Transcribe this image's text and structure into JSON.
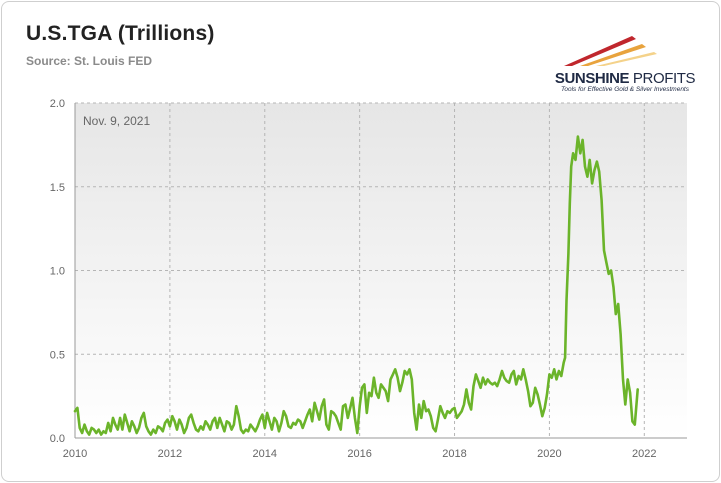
{
  "header": {
    "title": "U.S.TGA (Trillions)",
    "source": "Source: St. Louis FED"
  },
  "logo": {
    "name_part1": "SUNSHINE",
    "name_part2": " PROFITS",
    "tagline": "Tools for Effective Gold & Silver Investments",
    "colors": [
      "#c0272d",
      "#e8a33d",
      "#f4d28a"
    ]
  },
  "chart_data": {
    "type": "line",
    "title": "U.S.TGA (Trillions)",
    "annotation": "Nov. 9, 2021",
    "xlabel": "",
    "ylabel": "",
    "xlim": [
      2010,
      2022.9
    ],
    "ylim": [
      0,
      2.0
    ],
    "x_ticks": [
      2010,
      2012,
      2014,
      2016,
      2018,
      2020,
      2022
    ],
    "x_tick_labels": [
      "2010",
      "2012",
      "2014",
      "2016",
      "2018",
      "2020",
      "2022"
    ],
    "y_ticks": [
      0,
      0.5,
      1.0,
      1.5,
      2.0
    ],
    "y_tick_labels": [
      "0.0",
      "0.5",
      "1.0",
      "1.5",
      "2.0"
    ],
    "grid": true,
    "line_color": "#6bb42a",
    "series": [
      {
        "x": [
          2010.0,
          2010.05,
          2010.1,
          2010.15,
          2010.2,
          2010.25,
          2010.3,
          2010.35,
          2010.4,
          2010.45,
          2010.5,
          2010.55,
          2010.6,
          2010.65,
          2010.7,
          2010.75,
          2010.8,
          2010.85,
          2010.9,
          2010.95,
          2011.0,
          2011.05,
          2011.1,
          2011.15,
          2011.2,
          2011.25,
          2011.3,
          2011.35,
          2011.4,
          2011.45,
          2011.5,
          2011.55,
          2011.6,
          2011.65,
          2011.7,
          2011.75,
          2011.8,
          2011.85,
          2011.9,
          2011.95,
          2012.0,
          2012.05,
          2012.1,
          2012.15,
          2012.2,
          2012.25,
          2012.3,
          2012.35,
          2012.4,
          2012.45,
          2012.5,
          2012.55,
          2012.6,
          2012.65,
          2012.7,
          2012.75,
          2012.8,
          2012.85,
          2012.9,
          2012.95,
          2013.0,
          2013.05,
          2013.1,
          2013.15,
          2013.2,
          2013.25,
          2013.3,
          2013.35,
          2013.4,
          2013.45,
          2013.5,
          2013.55,
          2013.6,
          2013.65,
          2013.7,
          2013.75,
          2013.8,
          2013.85,
          2013.9,
          2013.95,
          2014.0,
          2014.05,
          2014.1,
          2014.15,
          2014.2,
          2014.25,
          2014.3,
          2014.35,
          2014.4,
          2014.45,
          2014.5,
          2014.55,
          2014.6,
          2014.65,
          2014.7,
          2014.75,
          2014.8,
          2014.85,
          2014.9,
          2014.95,
          2015.0,
          2015.05,
          2015.1,
          2015.15,
          2015.2,
          2015.25,
          2015.3,
          2015.35,
          2015.4,
          2015.45,
          2015.5,
          2015.55,
          2015.6,
          2015.65,
          2015.7,
          2015.75,
          2015.8,
          2015.85,
          2015.9,
          2015.95,
          2016.0,
          2016.05,
          2016.1,
          2016.15,
          2016.2,
          2016.25,
          2016.3,
          2016.35,
          2016.4,
          2016.45,
          2016.5,
          2016.55,
          2016.6,
          2016.65,
          2016.7,
          2016.75,
          2016.8,
          2016.85,
          2016.9,
          2016.95,
          2017.0,
          2017.05,
          2017.1,
          2017.15,
          2017.2,
          2017.25,
          2017.3,
          2017.35,
          2017.4,
          2017.45,
          2017.5,
          2017.55,
          2017.6,
          2017.65,
          2017.7,
          2017.75,
          2017.8,
          2017.85,
          2017.9,
          2017.95,
          2018.0,
          2018.05,
          2018.1,
          2018.15,
          2018.2,
          2018.25,
          2018.3,
          2018.35,
          2018.4,
          2018.45,
          2018.5,
          2018.55,
          2018.6,
          2018.65,
          2018.7,
          2018.75,
          2018.8,
          2018.85,
          2018.9,
          2018.95,
          2019.0,
          2019.05,
          2019.1,
          2019.15,
          2019.2,
          2019.25,
          2019.3,
          2019.35,
          2019.4,
          2019.45,
          2019.5,
          2019.55,
          2019.6,
          2019.65,
          2019.7,
          2019.75,
          2019.8,
          2019.85,
          2019.9,
          2019.95,
          2020.0,
          2020.05,
          2020.1,
          2020.15,
          2020.2,
          2020.25,
          2020.3,
          2020.33,
          2020.36,
          2020.4,
          2020.43,
          2020.46,
          2020.5,
          2020.55,
          2020.6,
          2020.65,
          2020.7,
          2020.75,
          2020.8,
          2020.85,
          2020.9,
          2020.95,
          2021.0,
          2021.05,
          2021.1,
          2021.15,
          2021.2,
          2021.25,
          2021.3,
          2021.35,
          2021.4,
          2021.45,
          2021.5,
          2021.55,
          2021.6,
          2021.65,
          2021.7,
          2021.75,
          2021.8,
          2021.86
        ],
        "y": [
          0.16,
          0.18,
          0.06,
          0.03,
          0.08,
          0.04,
          0.02,
          0.06,
          0.05,
          0.03,
          0.05,
          0.02,
          0.04,
          0.03,
          0.09,
          0.04,
          0.12,
          0.08,
          0.05,
          0.12,
          0.05,
          0.14,
          0.09,
          0.04,
          0.1,
          0.07,
          0.03,
          0.06,
          0.12,
          0.15,
          0.07,
          0.04,
          0.02,
          0.05,
          0.03,
          0.07,
          0.06,
          0.04,
          0.09,
          0.11,
          0.07,
          0.13,
          0.1,
          0.05,
          0.11,
          0.08,
          0.03,
          0.06,
          0.12,
          0.14,
          0.09,
          0.05,
          0.04,
          0.07,
          0.05,
          0.1,
          0.08,
          0.05,
          0.1,
          0.12,
          0.06,
          0.12,
          0.08,
          0.04,
          0.1,
          0.09,
          0.05,
          0.08,
          0.19,
          0.13,
          0.05,
          0.03,
          0.05,
          0.04,
          0.08,
          0.06,
          0.04,
          0.07,
          0.11,
          0.14,
          0.06,
          0.15,
          0.1,
          0.05,
          0.12,
          0.1,
          0.04,
          0.09,
          0.16,
          0.13,
          0.07,
          0.06,
          0.09,
          0.08,
          0.11,
          0.1,
          0.06,
          0.1,
          0.14,
          0.17,
          0.1,
          0.21,
          0.16,
          0.11,
          0.19,
          0.23,
          0.08,
          0.05,
          0.16,
          0.15,
          0.13,
          0.09,
          0.05,
          0.19,
          0.2,
          0.12,
          0.18,
          0.24,
          0.12,
          0.03,
          0.19,
          0.3,
          0.32,
          0.15,
          0.27,
          0.25,
          0.36,
          0.27,
          0.24,
          0.32,
          0.3,
          0.28,
          0.22,
          0.35,
          0.38,
          0.41,
          0.36,
          0.28,
          0.33,
          0.4,
          0.38,
          0.41,
          0.35,
          0.15,
          0.05,
          0.2,
          0.12,
          0.22,
          0.16,
          0.17,
          0.13,
          0.06,
          0.04,
          0.11,
          0.19,
          0.15,
          0.12,
          0.16,
          0.15,
          0.17,
          0.18,
          0.12,
          0.14,
          0.16,
          0.2,
          0.29,
          0.21,
          0.17,
          0.31,
          0.38,
          0.34,
          0.3,
          0.36,
          0.32,
          0.35,
          0.33,
          0.32,
          0.33,
          0.31,
          0.35,
          0.4,
          0.36,
          0.34,
          0.33,
          0.38,
          0.4,
          0.32,
          0.37,
          0.35,
          0.41,
          0.35,
          0.28,
          0.19,
          0.21,
          0.3,
          0.26,
          0.2,
          0.13,
          0.18,
          0.26,
          0.38,
          0.36,
          0.41,
          0.35,
          0.4,
          0.37,
          0.45,
          0.48,
          0.82,
          1.1,
          1.4,
          1.62,
          1.7,
          1.66,
          1.8,
          1.7,
          1.78,
          1.62,
          1.56,
          1.66,
          1.52,
          1.6,
          1.65,
          1.59,
          1.42,
          1.12,
          1.05,
          0.98,
          1.0,
          0.9,
          0.74,
          0.8,
          0.62,
          0.35,
          0.2,
          0.35,
          0.27,
          0.1,
          0.08,
          0.29
        ]
      }
    ]
  }
}
